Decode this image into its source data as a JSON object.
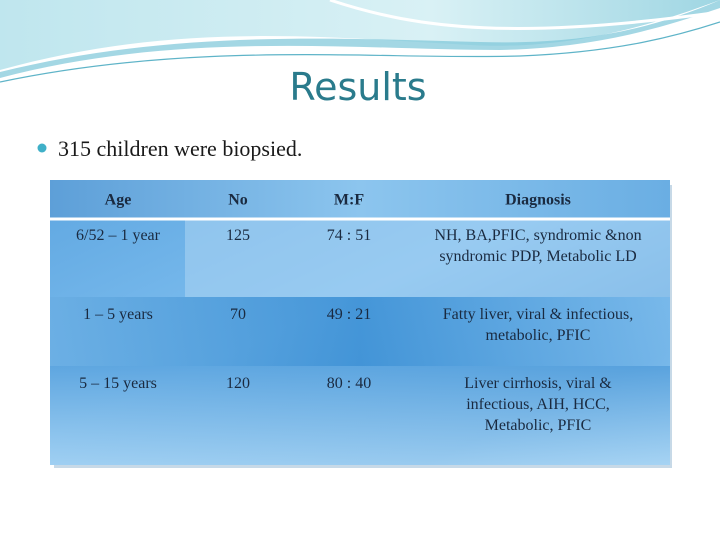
{
  "title": "Results",
  "bullets": [
    "315 children were biopsied."
  ],
  "table": {
    "header": [
      "Age",
      "No",
      "M:F",
      "Diagnosis"
    ],
    "rows": [
      {
        "age": "6/52 – 1 year",
        "no": "125",
        "mf": "74 : 51",
        "diagnosis": [
          "NH, BA,PFIC, syndromic &non",
          "syndromic PDP, Metabolic LD"
        ]
      },
      {
        "age": "1 – 5 years",
        "no": "70",
        "mf": "49 : 21",
        "diagnosis": [
          "Fatty liver, viral & infectious,",
          "metabolic, PFIC"
        ]
      },
      {
        "age": "5 – 15 years",
        "no": "120",
        "mf": "80 : 40",
        "diagnosis": [
          "Liver cirrhosis, viral &",
          "infectious, AIH, HCC,",
          "Metabolic, PFIC"
        ]
      }
    ]
  }
}
